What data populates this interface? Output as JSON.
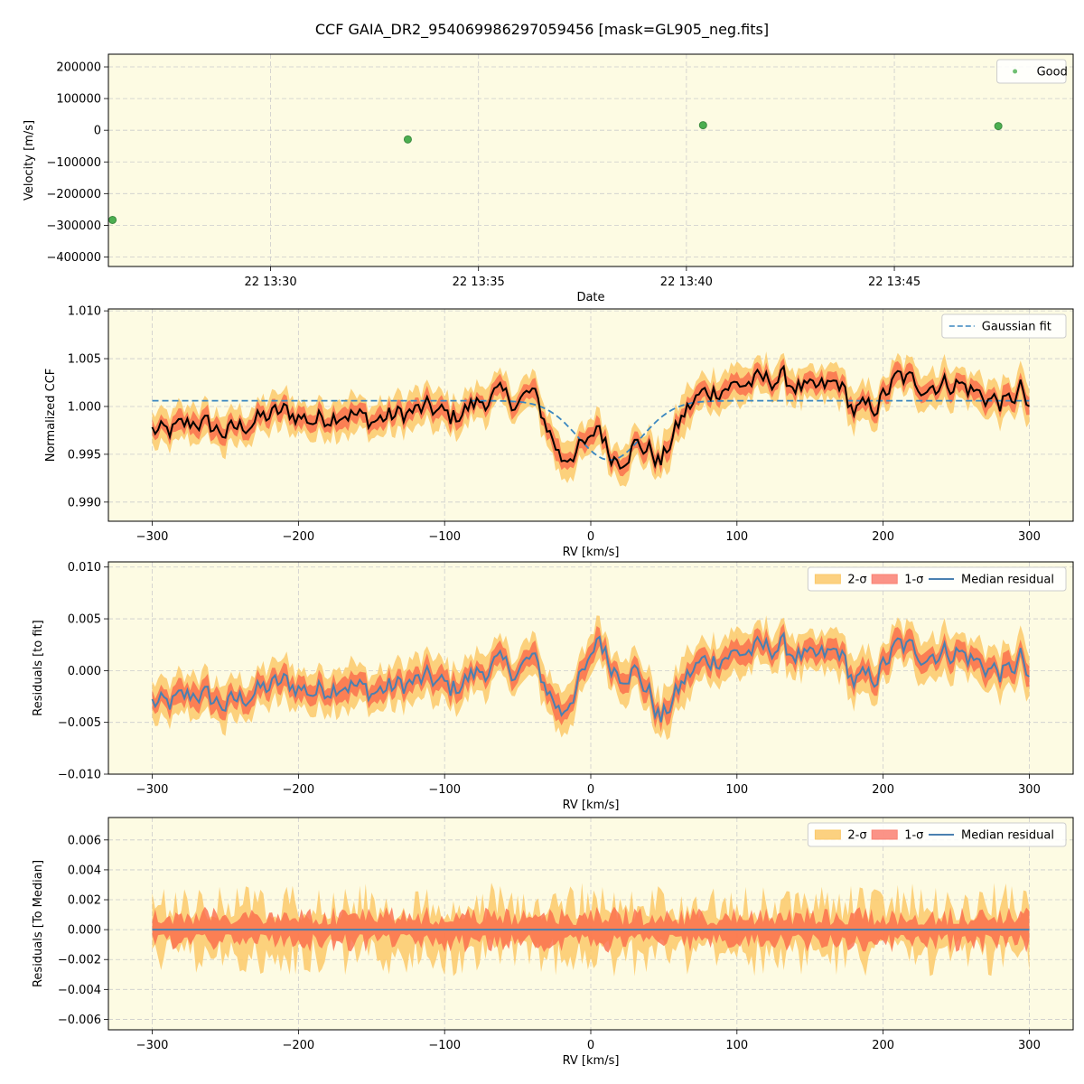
{
  "figure": {
    "title": "CCF GAIA_DR2_954069986297059456 [mask=GL905_neg.fits]",
    "background": "#ffffff",
    "axes_facecolor": "#fdfbe3",
    "grid_color": "#cccccc"
  },
  "chart_data": [
    {
      "id": "velocity",
      "type": "scatter",
      "xlabel": "Date",
      "ylabel": "Velocity [m/s]",
      "xlim": [
        26.1,
        49.3
      ],
      "ylim": [
        -430000,
        240000
      ],
      "xticks": [
        30,
        35,
        40,
        45
      ],
      "xtick_labels": [
        "22 13:30",
        "22 13:35",
        "22 13:40",
        "22 13:45"
      ],
      "yticks": [
        -400000,
        -300000,
        -200000,
        -100000,
        0,
        100000,
        200000,
        300000
      ],
      "ytick_labels": [
        "−400000",
        "−300000",
        "−200000",
        "−100000",
        "0",
        "100000",
        "200000"
      ],
      "legend": {
        "position": "top-right",
        "entries": [
          {
            "label": "Good",
            "color": "#4caf50",
            "kind": "dot"
          }
        ]
      },
      "series": [
        {
          "name": "Good",
          "color": "#4caf50",
          "x_minutes": [
            26.2,
            33.3,
            40.4,
            47.5
          ],
          "values": [
            -283000,
            -29000,
            16000,
            13000
          ]
        }
      ]
    },
    {
      "id": "ccf",
      "type": "line",
      "xlabel": "RV [km/s]",
      "ylabel": "Normalized CCF",
      "xlim": [
        -330,
        330
      ],
      "ylim": [
        0.988,
        1.0102
      ],
      "xticks": [
        -300,
        -200,
        -100,
        0,
        100,
        200,
        300
      ],
      "xtick_labels": [
        "−300",
        "−200",
        "−100",
        "0",
        "100",
        "200",
        "300"
      ],
      "yticks": [
        0.99,
        0.995,
        1.0,
        1.005,
        1.01
      ],
      "ytick_labels": [
        "0.990",
        "0.995",
        "1.000",
        "1.005",
        "1.010"
      ],
      "legend": {
        "position": "top-right",
        "entries": [
          {
            "label": "Gaussian fit",
            "color": "#3a87c0",
            "kind": "dash"
          }
        ]
      },
      "rv_start": -300,
      "rv_step": 2,
      "gaussian_fit": {
        "continuum": 1.0006,
        "depth": 0.0062,
        "center": 13,
        "sigma": 22
      },
      "ccf_knots": [
        [
          -300,
          0.9975
        ],
        [
          -290,
          0.9972
        ],
        [
          -270,
          0.9985
        ],
        [
          -250,
          0.9972
        ],
        [
          -230,
          0.9985
        ],
        [
          -210,
          0.9995
        ],
        [
          -190,
          0.9985
        ],
        [
          -170,
          0.9995
        ],
        [
          -150,
          0.9985
        ],
        [
          -130,
          0.9992
        ],
        [
          -110,
          0.9998
        ],
        [
          -95,
          0.9988
        ],
        [
          -80,
          1.0002
        ],
        [
          -65,
          1.0012
        ],
        [
          -50,
          1.0005
        ],
        [
          -40,
          1.0015
        ],
        [
          -30,
          0.998
        ],
        [
          -20,
          0.9945
        ],
        [
          -10,
          0.9955
        ],
        [
          0,
          0.996
        ],
        [
          5,
          0.9985
        ],
        [
          12,
          0.9952
        ],
        [
          20,
          0.9945
        ],
        [
          30,
          0.996
        ],
        [
          40,
          0.9955
        ],
        [
          48,
          0.994
        ],
        [
          55,
          0.9965
        ],
        [
          65,
          0.9995
        ],
        [
          75,
          1.0012
        ],
        [
          90,
          1.002
        ],
        [
          110,
          1.0025
        ],
        [
          130,
          1.003
        ],
        [
          150,
          1.0015
        ],
        [
          170,
          1.0025
        ],
        [
          180,
          0.9995
        ],
        [
          195,
          1.0
        ],
        [
          210,
          1.003
        ],
        [
          230,
          1.0022
        ],
        [
          250,
          1.0025
        ],
        [
          270,
          1.001
        ],
        [
          285,
          1.0002
        ],
        [
          295,
          1.002
        ],
        [
          300,
          0.999
        ]
      ],
      "ccf_noise_amp": 0.0014,
      "band_sigma": 0.0012
    },
    {
      "id": "resid_fit",
      "type": "line",
      "xlabel": "RV [km/s]",
      "ylabel": "Residuals [to fit]",
      "xlim": [
        -330,
        330
      ],
      "ylim": [
        -0.01,
        0.0105
      ],
      "xticks": [
        -300,
        -200,
        -100,
        0,
        100,
        200,
        300
      ],
      "xtick_labels": [
        "−300",
        "−200",
        "−100",
        "0",
        "100",
        "200",
        "300"
      ],
      "yticks": [
        -0.01,
        -0.005,
        0.0,
        0.005,
        0.01
      ],
      "ytick_labels": [
        "−0.010",
        "−0.005",
        "0.000",
        "0.005",
        "0.010"
      ],
      "legend": {
        "position": "top-right",
        "entries": [
          {
            "label": "2-σ",
            "color": "#fbc96a",
            "kind": "patch"
          },
          {
            "label": "1-σ",
            "color": "#fa8072",
            "kind": "patch"
          },
          {
            "label": "Median residual",
            "color": "#4a80b0",
            "kind": "line"
          }
        ]
      },
      "band_sigma": 0.0013
    },
    {
      "id": "resid_median",
      "type": "area",
      "xlabel": "RV [km/s]",
      "ylabel": "Residuals [To Median]",
      "xlim": [
        -330,
        330
      ],
      "ylim": [
        -0.0067,
        0.0075
      ],
      "xticks": [
        -300,
        -200,
        -100,
        0,
        100,
        200,
        300
      ],
      "xtick_labels": [
        "−300",
        "−200",
        "−100",
        "0",
        "100",
        "200",
        "300"
      ],
      "yticks": [
        -0.006,
        -0.004,
        -0.002,
        0.0,
        0.002,
        0.004,
        0.006
      ],
      "ytick_labels": [
        "−0.006",
        "−0.004",
        "−0.002",
        "0.000",
        "0.002",
        "0.004",
        "0.006"
      ],
      "legend": {
        "position": "top-right",
        "entries": [
          {
            "label": "2-σ",
            "color": "#fbc96a",
            "kind": "patch"
          },
          {
            "label": "1-σ",
            "color": "#fa8072",
            "kind": "patch"
          },
          {
            "label": "Median residual",
            "color": "#4a80b0",
            "kind": "line"
          }
        ]
      },
      "band_sigma": 0.0011
    }
  ]
}
